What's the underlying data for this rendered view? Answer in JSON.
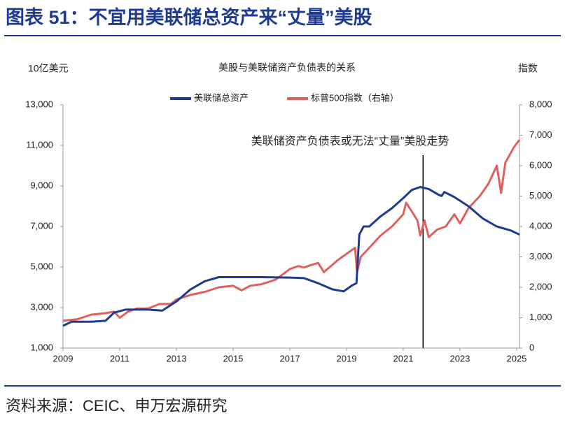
{
  "header": {
    "title": "图表 51：不宜用美联储总资产来“丈量”美股"
  },
  "footer": {
    "source": "资料来源：CEIC、申万宏源研究"
  },
  "chart_data": {
    "type": "line",
    "title": "美股与美联储资产负债表的关系",
    "y_label": "10亿美元",
    "y2_label": "指数",
    "xlim": [
      2009,
      2025.1
    ],
    "xticks": [
      2009,
      2011,
      2013,
      2015,
      2017,
      2019,
      2021,
      2023,
      2025
    ],
    "ylim": [
      1000,
      13000
    ],
    "yticks": [
      {
        "value": 1000,
        "label": "1,000"
      },
      {
        "value": 3000,
        "label": "3,000"
      },
      {
        "value": 5000,
        "label": "5,000"
      },
      {
        "value": 7000,
        "label": "7,000"
      },
      {
        "value": 9000,
        "label": "9,000"
      },
      {
        "value": 11000,
        "label": "11,000"
      },
      {
        "value": 13000,
        "label": "13,000"
      }
    ],
    "y2lim": [
      0,
      8000
    ],
    "y2ticks": [
      0,
      {
        "value": 1000,
        "label": "1,000"
      },
      {
        "value": 2000,
        "label": "2,000"
      },
      {
        "value": 3000,
        "label": "3,000"
      },
      {
        "value": 4000,
        "label": "4,000"
      },
      {
        "value": 5000,
        "label": "5,000"
      },
      {
        "value": 6000,
        "label": "6,000"
      },
      {
        "value": 7000,
        "label": "7,000"
      },
      {
        "value": 8000,
        "label": "8,000"
      }
    ],
    "legend": "top",
    "annotation": {
      "text": "美联储资产负债表或无法“丈量”美股走势",
      "x": 2021.7
    },
    "series": [
      {
        "name": "美联储总资产",
        "color": "#1f3b8f",
        "axis": "y",
        "x": [
          2009.0,
          2009.3,
          2010.0,
          2010.5,
          2010.8,
          2011.2,
          2012.0,
          2012.5,
          2013.0,
          2013.5,
          2014.0,
          2014.5,
          2016.0,
          2017.0,
          2017.5,
          2018.0,
          2018.5,
          2018.9,
          2019.2,
          2019.35,
          2019.45,
          2019.6,
          2019.8,
          2020.2,
          2020.6,
          2021.0,
          2021.3,
          2021.6,
          2021.9,
          2022.2,
          2022.35,
          2022.45,
          2022.8,
          2023.3,
          2023.8,
          2024.3,
          2024.8,
          2025.1
        ],
        "values": [
          2100,
          2300,
          2300,
          2350,
          2750,
          2900,
          2900,
          2850,
          3300,
          3900,
          4300,
          4500,
          4500,
          4480,
          4450,
          4200,
          3900,
          3800,
          4100,
          4200,
          6600,
          7000,
          7000,
          7500,
          7900,
          8400,
          8800,
          8950,
          8850,
          8600,
          8500,
          8700,
          8450,
          8000,
          7400,
          7000,
          6800,
          6600
        ]
      },
      {
        "name": "标普500指数（右轴）",
        "color": "#e06060",
        "axis": "y2",
        "x": [
          2009.0,
          2009.5,
          2010.0,
          2010.5,
          2010.8,
          2011.0,
          2011.3,
          2011.6,
          2012.0,
          2012.4,
          2012.8,
          2013.0,
          2013.5,
          2014.0,
          2014.5,
          2015.0,
          2015.3,
          2015.6,
          2016.0,
          2016.5,
          2017.0,
          2017.3,
          2017.5,
          2017.8,
          2018.0,
          2018.2,
          2018.7,
          2019.0,
          2019.3,
          2019.37,
          2019.5,
          2019.8,
          2020.2,
          2020.6,
          2021.0,
          2021.1,
          2021.3,
          2021.5,
          2021.6,
          2021.75,
          2021.9,
          2022.2,
          2022.5,
          2022.8,
          2023.0,
          2023.3,
          2023.7,
          2024.0,
          2024.3,
          2024.45,
          2024.6,
          2024.9,
          2025.1
        ],
        "values": [
          900,
          950,
          1100,
          1150,
          1200,
          1000,
          1200,
          1300,
          1300,
          1450,
          1450,
          1600,
          1750,
          1850,
          2000,
          2050,
          1900,
          2050,
          2100,
          2250,
          2600,
          2700,
          2650,
          2750,
          2800,
          2500,
          2900,
          3100,
          3300,
          2500,
          3000,
          3300,
          3700,
          4000,
          4400,
          4780,
          4500,
          4200,
          3700,
          4200,
          3650,
          3900,
          4000,
          4400,
          4100,
          4600,
          5000,
          5400,
          6000,
          5100,
          6100,
          6600,
          6850
        ]
      }
    ]
  }
}
